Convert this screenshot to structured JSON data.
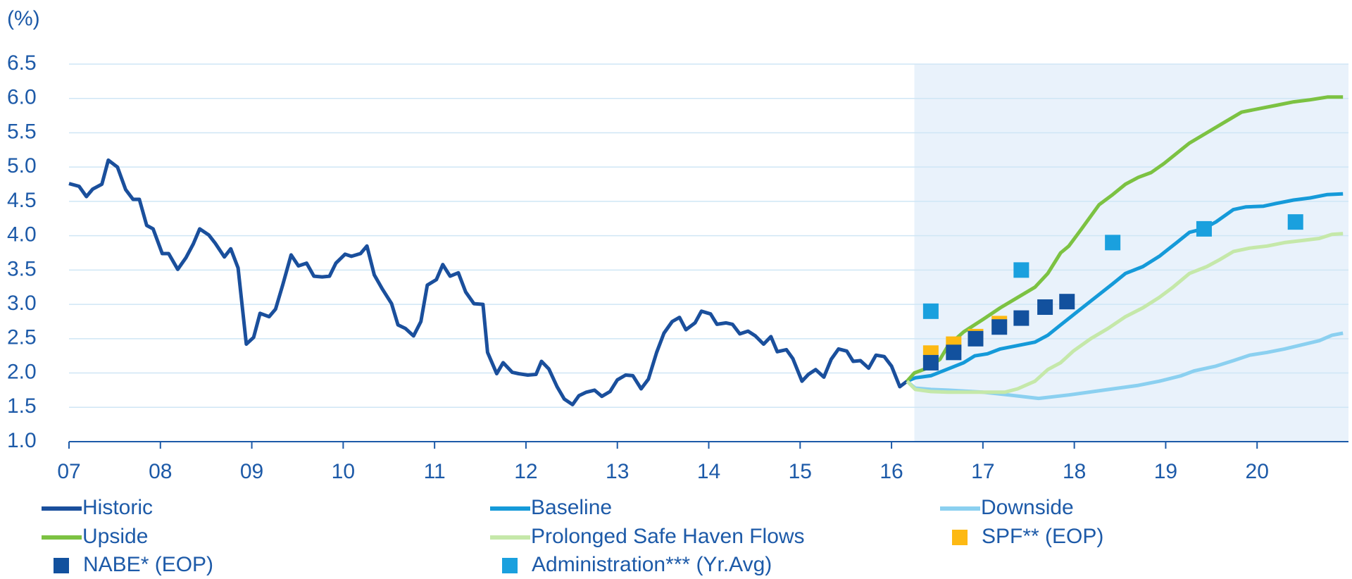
{
  "chart_data": {
    "type": "line",
    "y_unit_label": "(%)",
    "xlim": [
      7,
      21
    ],
    "ylim": [
      1,
      6.5
    ],
    "xticks": [
      {
        "value": 7,
        "label": "07"
      },
      {
        "value": 8,
        "label": "08"
      },
      {
        "value": 9,
        "label": "09"
      },
      10,
      11,
      12,
      13,
      14,
      15,
      16,
      17,
      18,
      19,
      20
    ],
    "yticks": [
      {
        "value": 1,
        "label": "1.0"
      },
      1.5,
      {
        "value": 2,
        "label": "2.0"
      },
      2.5,
      {
        "value": 3,
        "label": "3.0"
      },
      3.5,
      {
        "value": 4,
        "label": "4.0"
      },
      4.5,
      {
        "value": 5,
        "label": "5.0"
      },
      5.5,
      {
        "value": 6,
        "label": "6.0"
      },
      6.5
    ],
    "grid": true,
    "forecast_from": 16.25,
    "forecast_color": "#e9f2fb",
    "series": [
      {
        "name": "Historic",
        "color": "#1a4f9c",
        "marker": "line",
        "x": [
          7.0,
          7.11,
          7.19,
          7.26,
          7.36,
          7.43,
          7.53,
          7.62,
          7.7,
          7.77,
          7.85,
          7.92,
          8.02,
          8.09,
          8.19,
          8.28,
          8.36,
          8.43,
          8.53,
          8.6,
          8.7,
          8.77,
          8.85,
          8.94,
          9.02,
          9.09,
          9.19,
          9.26,
          9.34,
          9.43,
          9.51,
          9.6,
          9.68,
          9.77,
          9.85,
          9.92,
          10.02,
          10.09,
          10.19,
          10.26,
          10.34,
          10.43,
          10.53,
          10.6,
          10.68,
          10.77,
          10.85,
          10.92,
          11.02,
          11.09,
          11.17,
          11.26,
          11.34,
          11.43,
          11.53,
          11.58,
          11.68,
          11.75,
          11.85,
          11.92,
          12.02,
          12.11,
          12.17,
          12.25,
          12.34,
          12.42,
          12.51,
          12.58,
          12.66,
          12.75,
          12.83,
          12.92,
          13.0,
          13.09,
          13.17,
          13.26,
          13.34,
          13.43,
          13.51,
          13.6,
          13.68,
          13.75,
          13.85,
          13.92,
          14.02,
          14.09,
          14.19,
          14.26,
          14.34,
          14.43,
          14.51,
          14.6,
          14.68,
          14.75,
          14.85,
          14.92,
          15.02,
          15.09,
          15.17,
          15.26,
          15.34,
          15.42,
          15.51,
          15.58,
          15.66,
          15.75,
          15.83,
          15.92,
          16.0,
          16.09,
          16.17
        ],
        "values": [
          4.76,
          4.72,
          4.57,
          4.68,
          4.75,
          5.1,
          5.0,
          4.67,
          4.53,
          4.53,
          4.15,
          4.1,
          3.74,
          3.74,
          3.51,
          3.68,
          3.88,
          4.1,
          4.01,
          3.89,
          3.69,
          3.81,
          3.53,
          2.42,
          2.52,
          2.87,
          2.82,
          2.93,
          3.29,
          3.72,
          3.56,
          3.6,
          3.41,
          3.4,
          3.41,
          3.6,
          3.73,
          3.7,
          3.74,
          3.85,
          3.43,
          3.22,
          3.01,
          2.7,
          2.65,
          2.54,
          2.75,
          3.28,
          3.36,
          3.58,
          3.41,
          3.46,
          3.18,
          3.01,
          3.0,
          2.3,
          1.99,
          2.15,
          2.01,
          1.99,
          1.97,
          1.98,
          2.17,
          2.06,
          1.8,
          1.62,
          1.54,
          1.67,
          1.72,
          1.75,
          1.66,
          1.73,
          1.9,
          1.97,
          1.96,
          1.77,
          1.91,
          2.3,
          2.58,
          2.75,
          2.81,
          2.63,
          2.73,
          2.9,
          2.86,
          2.71,
          2.73,
          2.71,
          2.57,
          2.61,
          2.54,
          2.42,
          2.53,
          2.31,
          2.34,
          2.21,
          1.88,
          1.98,
          2.05,
          1.94,
          2.2,
          2.35,
          2.32,
          2.17,
          2.18,
          2.07,
          2.26,
          2.24,
          2.1,
          1.8,
          1.88
        ]
      },
      {
        "name": "Baseline",
        "color": "#159ad9",
        "marker": "line",
        "x": [
          16.17,
          16.26,
          16.43,
          16.62,
          16.79,
          16.91,
          17.05,
          17.19,
          17.38,
          17.57,
          17.71,
          17.85,
          18.04,
          18.23,
          18.42,
          18.56,
          18.75,
          18.93,
          19.12,
          19.26,
          19.41,
          19.55,
          19.74,
          19.88,
          20.07,
          20.21,
          20.4,
          20.58,
          20.77,
          20.94
        ],
        "values": [
          1.88,
          1.93,
          1.96,
          2.06,
          2.15,
          2.25,
          2.28,
          2.35,
          2.4,
          2.45,
          2.55,
          2.7,
          2.9,
          3.1,
          3.3,
          3.45,
          3.55,
          3.7,
          3.9,
          4.05,
          4.1,
          4.2,
          4.38,
          4.42,
          4.43,
          4.47,
          4.52,
          4.55,
          4.6,
          4.61
        ]
      },
      {
        "name": "Downside",
        "color": "#8bd0f0",
        "marker": "line",
        "x": [
          16.17,
          16.26,
          16.43,
          16.62,
          17.0,
          17.28,
          17.61,
          17.94,
          18.32,
          18.7,
          18.93,
          19.17,
          19.31,
          19.55,
          19.74,
          19.92,
          20.11,
          20.3,
          20.49,
          20.68,
          20.82,
          20.94
        ],
        "values": [
          1.88,
          1.78,
          1.76,
          1.75,
          1.72,
          1.68,
          1.63,
          1.68,
          1.75,
          1.82,
          1.88,
          1.96,
          2.03,
          2.1,
          2.18,
          2.26,
          2.3,
          2.35,
          2.41,
          2.47,
          2.55,
          2.58
        ]
      },
      {
        "name": "Upside",
        "color": "#7cc242",
        "marker": "line",
        "x": [
          16.17,
          16.25,
          16.39,
          16.53,
          16.62,
          16.79,
          17.0,
          17.19,
          17.38,
          17.57,
          17.71,
          17.85,
          17.94,
          18.08,
          18.27,
          18.42,
          18.56,
          18.7,
          18.84,
          18.98,
          19.12,
          19.26,
          19.45,
          19.64,
          19.83,
          20.02,
          20.21,
          20.4,
          20.58,
          20.77,
          20.94
        ],
        "values": [
          1.88,
          2.0,
          2.07,
          2.2,
          2.4,
          2.6,
          2.78,
          2.95,
          3.1,
          3.25,
          3.45,
          3.75,
          3.85,
          4.1,
          4.45,
          4.6,
          4.75,
          4.85,
          4.92,
          5.05,
          5.2,
          5.35,
          5.5,
          5.65,
          5.8,
          5.85,
          5.9,
          5.95,
          5.98,
          6.02,
          6.02
        ]
      },
      {
        "name": "Prolonged Safe Haven Flows",
        "color": "#c5e8a9",
        "marker": "line",
        "x": [
          16.17,
          16.26,
          16.43,
          16.62,
          16.81,
          17.0,
          17.24,
          17.38,
          17.57,
          17.71,
          17.85,
          17.99,
          18.18,
          18.37,
          18.56,
          18.75,
          18.93,
          19.08,
          19.26,
          19.45,
          19.59,
          19.74,
          19.92,
          20.11,
          20.3,
          20.49,
          20.68,
          20.82,
          20.94
        ],
        "values": [
          1.88,
          1.76,
          1.73,
          1.72,
          1.72,
          1.72,
          1.72,
          1.77,
          1.88,
          2.05,
          2.15,
          2.32,
          2.5,
          2.65,
          2.82,
          2.95,
          3.1,
          3.25,
          3.45,
          3.55,
          3.65,
          3.77,
          3.82,
          3.85,
          3.9,
          3.93,
          3.96,
          4.02,
          4.03
        ]
      },
      {
        "name": "SPF** (EOP)",
        "color": "#fdb913",
        "marker": "square",
        "x": [
          16.43,
          16.68,
          16.92,
          17.18
        ],
        "values": [
          2.29,
          2.42,
          2.53,
          2.72
        ]
      },
      {
        "name": "NABE* (EOP)",
        "color": "#12519e",
        "marker": "square",
        "x": [
          16.43,
          16.68,
          16.92,
          17.18,
          17.42,
          17.68,
          17.92
        ],
        "values": [
          2.15,
          2.3,
          2.5,
          2.67,
          2.8,
          2.96,
          3.04
        ]
      },
      {
        "name": "Administration*** (Yr.Avg)",
        "color": "#1aa0de",
        "marker": "square",
        "x": [
          16.43,
          17.42,
          18.42,
          19.42,
          20.42
        ],
        "values": [
          2.9,
          3.5,
          3.9,
          4.1,
          4.2
        ]
      }
    ]
  }
}
